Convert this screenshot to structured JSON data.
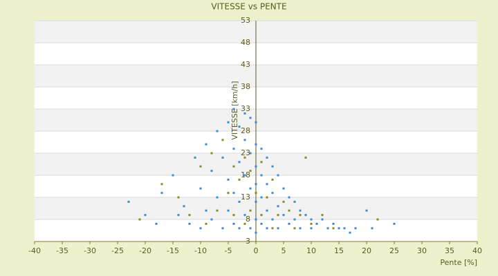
{
  "chart_data": {
    "type": "scatter",
    "title": "VITESSE vs PENTE",
    "x_label": "Pente [%]",
    "y_label": "VITESSE [km/h]",
    "xlim": [
      -40,
      40
    ],
    "xticks": [
      -40,
      -35,
      -30,
      -25,
      -20,
      -15,
      -10,
      -5,
      0,
      5,
      10,
      15,
      20,
      25,
      30,
      35,
      40
    ],
    "ylim": [
      3,
      53
    ],
    "yticks": [
      3,
      8,
      13,
      18,
      23,
      28,
      33,
      38,
      43,
      48,
      53
    ],
    "grid": true,
    "bands": true,
    "series": [
      {
        "color": "#3a8ad6",
        "x": [
          -23,
          -20,
          -18,
          -17,
          -15,
          -14,
          -13,
          -12,
          -11,
          -10,
          -10,
          -9,
          -9,
          -8,
          -8,
          -7,
          -7,
          -6,
          -6,
          -5,
          -5,
          -5,
          -4,
          -4,
          -4,
          -4,
          -3,
          -3,
          -3,
          -3,
          -2,
          -2,
          -2,
          -2,
          -1,
          -1,
          -1,
          -1,
          0,
          0,
          0,
          0,
          0,
          0,
          0,
          1,
          1,
          1,
          1,
          2,
          2,
          2,
          2,
          3,
          3,
          3,
          4,
          4,
          4,
          5,
          5,
          6,
          6,
          7,
          7,
          8,
          8,
          9,
          10,
          10,
          11,
          12,
          13,
          14,
          15,
          16,
          17,
          18,
          20,
          21,
          25
        ],
        "values": [
          12,
          9,
          7,
          14,
          18,
          9,
          11,
          7,
          22,
          15,
          6,
          25,
          10,
          19,
          8,
          28,
          13,
          22,
          6,
          30,
          17,
          10,
          33,
          24,
          14,
          7,
          29,
          21,
          12,
          6,
          32,
          26,
          18,
          9,
          31,
          23,
          15,
          6,
          30,
          25,
          20,
          16,
          12,
          8,
          5,
          24,
          18,
          13,
          7,
          22,
          16,
          10,
          6,
          20,
          14,
          8,
          18,
          11,
          6,
          15,
          9,
          13,
          7,
          12,
          8,
          10,
          6,
          9,
          8,
          6,
          7,
          8,
          6,
          7,
          6,
          6,
          5,
          6,
          10,
          6,
          7
        ]
      },
      {
        "color": "#8c8a1e",
        "x": [
          -21,
          -17,
          -14,
          -12,
          -10,
          -9,
          -8,
          -7,
          -6,
          -5,
          -4,
          -4,
          -3,
          -2,
          -2,
          -1,
          -1,
          0,
          1,
          1,
          2,
          3,
          3,
          4,
          5,
          6,
          7,
          8,
          9,
          10,
          12,
          14,
          22
        ],
        "values": [
          8,
          16,
          13,
          9,
          20,
          7,
          23,
          10,
          26,
          14,
          20,
          9,
          17,
          22,
          7,
          19,
          10,
          14,
          21,
          9,
          13,
          17,
          6,
          9,
          12,
          10,
          6,
          9,
          22,
          7,
          9,
          6,
          8
        ]
      }
    ]
  }
}
